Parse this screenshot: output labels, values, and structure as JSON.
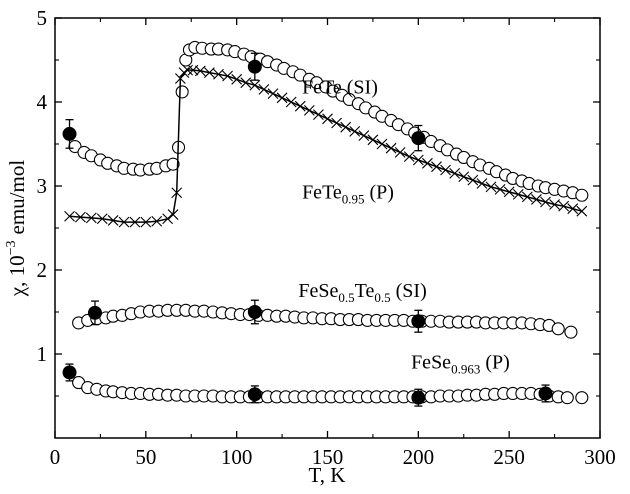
{
  "chart_data": {
    "type": "scatter",
    "xlabel": "T, K",
    "ylabel": "χ, 10",
    "ylabel_exp": "−3",
    "ylabel_unit": "emu/mol",
    "xlim": [
      0,
      300
    ],
    "ylim": [
      0,
      5
    ],
    "xticks": [
      "0",
      "50",
      "100",
      "150",
      "200",
      "250",
      "300"
    ],
    "yticks": [
      "1",
      "2",
      "3",
      "4",
      "5"
    ],
    "grid": false,
    "series": [
      {
        "name": "FeTe (SI)",
        "label_parts": [
          {
            "t": "FeTe (SI)",
            "sub": false
          }
        ],
        "label_at": [
          136,
          4.1
        ],
        "marker": "open-circle",
        "points": [
          [
            11,
            3.47
          ],
          [
            16,
            3.4
          ],
          [
            20,
            3.36
          ],
          [
            25,
            3.31
          ],
          [
            29,
            3.27
          ],
          [
            34,
            3.24
          ],
          [
            38,
            3.21
          ],
          [
            43,
            3.2
          ],
          [
            47,
            3.19
          ],
          [
            52,
            3.2
          ],
          [
            56,
            3.21
          ],
          [
            61,
            3.24
          ],
          [
            65,
            3.26
          ],
          [
            68,
            3.46
          ],
          [
            70,
            4.12
          ],
          [
            72,
            4.5
          ],
          [
            74,
            4.62
          ],
          [
            77,
            4.65
          ],
          [
            81,
            4.64
          ],
          [
            86,
            4.63
          ],
          [
            90,
            4.63
          ],
          [
            95,
            4.62
          ],
          [
            99,
            4.6
          ],
          [
            104,
            4.57
          ],
          [
            108,
            4.54
          ],
          [
            113,
            4.51
          ],
          [
            117,
            4.48
          ],
          [
            122,
            4.44
          ],
          [
            126,
            4.4
          ],
          [
            131,
            4.36
          ],
          [
            135,
            4.32
          ],
          [
            140,
            4.27
          ],
          [
            144,
            4.23
          ],
          [
            149,
            4.18
          ],
          [
            153,
            4.13
          ],
          [
            158,
            4.08
          ],
          [
            162,
            4.03
          ],
          [
            167,
            3.98
          ],
          [
            171,
            3.93
          ],
          [
            176,
            3.88
          ],
          [
            180,
            3.83
          ],
          [
            185,
            3.78
          ],
          [
            189,
            3.73
          ],
          [
            194,
            3.68
          ],
          [
            198,
            3.63
          ],
          [
            203,
            3.58
          ],
          [
            207,
            3.53
          ],
          [
            212,
            3.48
          ],
          [
            216,
            3.43
          ],
          [
            221,
            3.38
          ],
          [
            225,
            3.34
          ],
          [
            230,
            3.29
          ],
          [
            234,
            3.25
          ],
          [
            239,
            3.21
          ],
          [
            243,
            3.17
          ],
          [
            248,
            3.13
          ],
          [
            252,
            3.09
          ],
          [
            257,
            3.06
          ],
          [
            261,
            3.03
          ],
          [
            266,
            3.0
          ],
          [
            270,
            2.98
          ],
          [
            275,
            2.96
          ],
          [
            280,
            2.94
          ],
          [
            285,
            2.92
          ],
          [
            290,
            2.89
          ]
        ],
        "errorbars": [
          [
            8,
            3.62,
            0.17
          ],
          [
            110,
            4.42,
            0.16
          ],
          [
            200,
            3.57,
            0.15
          ]
        ]
      },
      {
        "name": "FeTe0.95 (P)",
        "label_parts": [
          {
            "t": "FeTe",
            "sub": false
          },
          {
            "t": "0.95",
            "sub": true
          },
          {
            "t": " (P)",
            "sub": false
          }
        ],
        "label_at": [
          136,
          2.85
        ],
        "marker": "cross-line",
        "points": [
          [
            8,
            2.64
          ],
          [
            14,
            2.63
          ],
          [
            20,
            2.62
          ],
          [
            26,
            2.61
          ],
          [
            32,
            2.59
          ],
          [
            38,
            2.57
          ],
          [
            44,
            2.57
          ],
          [
            50,
            2.57
          ],
          [
            56,
            2.58
          ],
          [
            62,
            2.61
          ],
          [
            65,
            2.66
          ],
          [
            67,
            2.92
          ],
          [
            69,
            4.28
          ],
          [
            71,
            4.35
          ],
          [
            73,
            4.38
          ],
          [
            76,
            4.38
          ],
          [
            80,
            4.37
          ],
          [
            85,
            4.35
          ],
          [
            90,
            4.33
          ],
          [
            95,
            4.31
          ],
          [
            100,
            4.27
          ],
          [
            105,
            4.23
          ],
          [
            110,
            4.2
          ],
          [
            115,
            4.15
          ],
          [
            120,
            4.1
          ],
          [
            125,
            4.05
          ],
          [
            130,
            4.0
          ],
          [
            135,
            3.95
          ],
          [
            140,
            3.9
          ],
          [
            145,
            3.85
          ],
          [
            150,
            3.8
          ],
          [
            155,
            3.75
          ],
          [
            160,
            3.7
          ],
          [
            165,
            3.65
          ],
          [
            170,
            3.6
          ],
          [
            175,
            3.55
          ],
          [
            180,
            3.5
          ],
          [
            185,
            3.45
          ],
          [
            190,
            3.4
          ],
          [
            195,
            3.35
          ],
          [
            200,
            3.31
          ],
          [
            205,
            3.27
          ],
          [
            210,
            3.23
          ],
          [
            215,
            3.19
          ],
          [
            220,
            3.15
          ],
          [
            225,
            3.11
          ],
          [
            230,
            3.07
          ],
          [
            235,
            3.03
          ],
          [
            240,
            2.99
          ],
          [
            245,
            2.96
          ],
          [
            250,
            2.93
          ],
          [
            255,
            2.9
          ],
          [
            260,
            2.87
          ],
          [
            265,
            2.84
          ],
          [
            270,
            2.81
          ],
          [
            275,
            2.78
          ],
          [
            280,
            2.76
          ],
          [
            285,
            2.73
          ],
          [
            290,
            2.7
          ]
        ],
        "errorbars": []
      },
      {
        "name": "FeSe0.5Te0.5 (SI)",
        "label_parts": [
          {
            "t": "FeSe",
            "sub": false
          },
          {
            "t": "0.5",
            "sub": true
          },
          {
            "t": "Te",
            "sub": false
          },
          {
            "t": "0.5",
            "sub": true
          },
          {
            "t": " (SI)",
            "sub": false
          }
        ],
        "label_at": [
          134,
          1.68
        ],
        "marker": "open-circle",
        "points": [
          [
            13,
            1.37
          ],
          [
            18,
            1.4
          ],
          [
            23,
            1.42
          ],
          [
            28,
            1.43
          ],
          [
            32,
            1.45
          ],
          [
            37,
            1.46
          ],
          [
            42,
            1.48
          ],
          [
            47,
            1.5
          ],
          [
            52,
            1.51
          ],
          [
            57,
            1.51
          ],
          [
            62,
            1.52
          ],
          [
            67,
            1.52
          ],
          [
            72,
            1.52
          ],
          [
            77,
            1.51
          ],
          [
            82,
            1.51
          ],
          [
            87,
            1.5
          ],
          [
            92,
            1.49
          ],
          [
            97,
            1.48
          ],
          [
            102,
            1.47
          ],
          [
            107,
            1.47
          ],
          [
            112,
            1.46
          ],
          [
            117,
            1.46
          ],
          [
            122,
            1.45
          ],
          [
            127,
            1.45
          ],
          [
            132,
            1.44
          ],
          [
            137,
            1.43
          ],
          [
            142,
            1.43
          ],
          [
            147,
            1.42
          ],
          [
            152,
            1.42
          ],
          [
            157,
            1.41
          ],
          [
            162,
            1.41
          ],
          [
            167,
            1.41
          ],
          [
            172,
            1.4
          ],
          [
            177,
            1.4
          ],
          [
            182,
            1.4
          ],
          [
            187,
            1.4
          ],
          [
            192,
            1.4
          ],
          [
            197,
            1.39
          ],
          [
            202,
            1.39
          ],
          [
            207,
            1.39
          ],
          [
            212,
            1.39
          ],
          [
            217,
            1.38
          ],
          [
            222,
            1.38
          ],
          [
            227,
            1.38
          ],
          [
            232,
            1.38
          ],
          [
            237,
            1.37
          ],
          [
            242,
            1.37
          ],
          [
            247,
            1.37
          ],
          [
            252,
            1.37
          ],
          [
            257,
            1.37
          ],
          [
            262,
            1.36
          ],
          [
            267,
            1.35
          ],
          [
            272,
            1.34
          ],
          [
            277,
            1.3
          ],
          [
            284,
            1.26
          ]
        ],
        "errorbars": [
          [
            22,
            1.49,
            0.14
          ],
          [
            110,
            1.5,
            0.14
          ],
          [
            200,
            1.39,
            0.13
          ]
        ]
      },
      {
        "name": "FeSe0.963 (P)",
        "label_parts": [
          {
            "t": "FeSe",
            "sub": false
          },
          {
            "t": "0.963",
            "sub": true
          },
          {
            "t": " (P)",
            "sub": false
          }
        ],
        "label_at": [
          196,
          0.83
        ],
        "marker": "open-circle",
        "points": [
          [
            13,
            0.66
          ],
          [
            18,
            0.6
          ],
          [
            23,
            0.58
          ],
          [
            28,
            0.56
          ],
          [
            32,
            0.55
          ],
          [
            37,
            0.54
          ],
          [
            42,
            0.53
          ],
          [
            47,
            0.53
          ],
          [
            52,
            0.52
          ],
          [
            57,
            0.52
          ],
          [
            62,
            0.51
          ],
          [
            67,
            0.51
          ],
          [
            72,
            0.5
          ],
          [
            77,
            0.5
          ],
          [
            82,
            0.5
          ],
          [
            87,
            0.5
          ],
          [
            92,
            0.49
          ],
          [
            97,
            0.49
          ],
          [
            102,
            0.49
          ],
          [
            107,
            0.49
          ],
          [
            112,
            0.49
          ],
          [
            117,
            0.49
          ],
          [
            122,
            0.49
          ],
          [
            127,
            0.49
          ],
          [
            132,
            0.49
          ],
          [
            137,
            0.49
          ],
          [
            142,
            0.49
          ],
          [
            147,
            0.49
          ],
          [
            152,
            0.49
          ],
          [
            157,
            0.49
          ],
          [
            162,
            0.49
          ],
          [
            167,
            0.49
          ],
          [
            172,
            0.49
          ],
          [
            177,
            0.49
          ],
          [
            182,
            0.49
          ],
          [
            187,
            0.49
          ],
          [
            192,
            0.49
          ],
          [
            197,
            0.49
          ],
          [
            202,
            0.49
          ],
          [
            207,
            0.49
          ],
          [
            212,
            0.5
          ],
          [
            217,
            0.5
          ],
          [
            222,
            0.5
          ],
          [
            227,
            0.51
          ],
          [
            232,
            0.51
          ],
          [
            237,
            0.52
          ],
          [
            242,
            0.52
          ],
          [
            247,
            0.53
          ],
          [
            252,
            0.53
          ],
          [
            257,
            0.53
          ],
          [
            262,
            0.53
          ],
          [
            267,
            0.52
          ],
          [
            272,
            0.5
          ],
          [
            277,
            0.49
          ],
          [
            282,
            0.48
          ],
          [
            290,
            0.48
          ]
        ],
        "errorbars": [
          [
            8,
            0.78,
            0.1
          ],
          [
            110,
            0.52,
            0.1
          ],
          [
            200,
            0.48,
            0.1
          ],
          [
            270,
            0.53,
            0.1
          ]
        ]
      }
    ]
  }
}
